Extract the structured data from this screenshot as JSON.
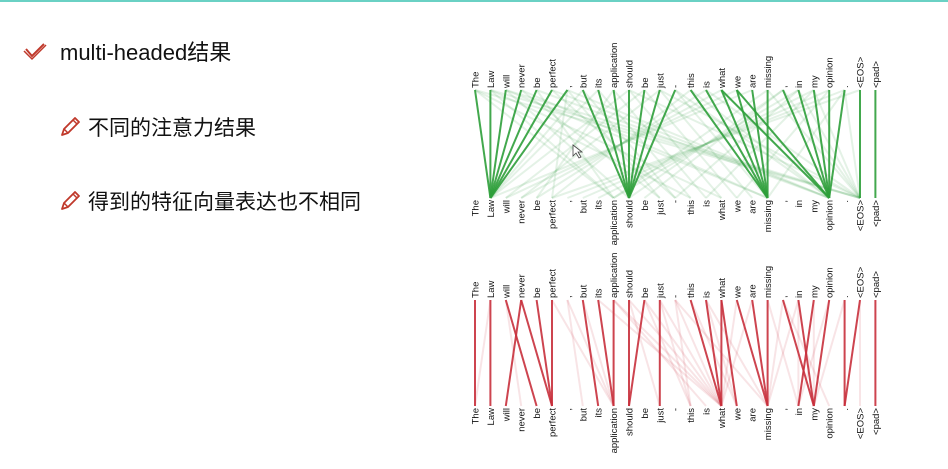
{
  "slide": {
    "heading": "multi-headed结果",
    "points": [
      "不同的注意力结果",
      "得到的特征向量表达也不相同"
    ]
  },
  "tokens": [
    "The",
    "Law",
    "will",
    "never",
    "be",
    "perfect",
    ",",
    "but",
    "its",
    "application",
    "should",
    "be",
    "just",
    "-",
    "this",
    "is",
    "what",
    "we",
    "are",
    "missing",
    ",",
    "in",
    "my",
    "opinion",
    ".",
    "<EOS>",
    "<pad>"
  ],
  "heads": [
    {
      "name": "green-head",
      "color": "#2e9e3a",
      "strong": [
        [
          1,
          1
        ],
        [
          2,
          1
        ],
        [
          3,
          1
        ],
        [
          4,
          1
        ],
        [
          5,
          1
        ],
        [
          8,
          10
        ],
        [
          9,
          10
        ],
        [
          10,
          10
        ],
        [
          11,
          10
        ],
        [
          12,
          10
        ],
        [
          13,
          10
        ],
        [
          14,
          19
        ],
        [
          15,
          19
        ],
        [
          16,
          19
        ],
        [
          17,
          19
        ],
        [
          18,
          19
        ],
        [
          19,
          19
        ],
        [
          20,
          23
        ],
        [
          21,
          23
        ],
        [
          22,
          23
        ],
        [
          23,
          23
        ],
        [
          24,
          23
        ],
        [
          25,
          25
        ],
        [
          26,
          26
        ],
        [
          0,
          1
        ],
        [
          6,
          1
        ],
        [
          7,
          10
        ],
        [
          16,
          23
        ],
        [
          17,
          23
        ]
      ],
      "faint": [
        [
          0,
          9
        ],
        [
          1,
          9
        ],
        [
          2,
          10
        ],
        [
          3,
          12
        ],
        [
          4,
          9
        ],
        [
          5,
          13
        ],
        [
          6,
          12
        ],
        [
          7,
          13
        ],
        [
          8,
          14
        ],
        [
          9,
          15
        ],
        [
          10,
          16
        ],
        [
          11,
          17
        ],
        [
          12,
          18
        ],
        [
          13,
          19
        ],
        [
          2,
          19
        ],
        [
          3,
          19
        ],
        [
          4,
          23
        ],
        [
          5,
          23
        ],
        [
          6,
          23
        ],
        [
          1,
          16
        ],
        [
          0,
          14
        ],
        [
          20,
          10
        ],
        [
          21,
          9
        ],
        [
          22,
          8
        ],
        [
          23,
          7
        ],
        [
          24,
          6
        ],
        [
          25,
          5
        ],
        [
          18,
          1
        ],
        [
          17,
          2
        ],
        [
          16,
          3
        ],
        [
          15,
          4
        ],
        [
          14,
          5
        ],
        [
          19,
          9
        ],
        [
          20,
          11
        ],
        [
          21,
          13
        ],
        [
          22,
          15
        ],
        [
          23,
          17
        ],
        [
          24,
          19
        ],
        [
          12,
          3
        ],
        [
          11,
          2
        ],
        [
          10,
          1
        ],
        [
          9,
          4
        ],
        [
          8,
          1
        ],
        [
          7,
          1
        ],
        [
          6,
          5
        ],
        [
          13,
          23
        ],
        [
          14,
          23
        ],
        [
          15,
          25
        ],
        [
          19,
          25
        ],
        [
          20,
          25
        ],
        [
          21,
          25
        ],
        [
          22,
          25
        ],
        [
          24,
          25
        ],
        [
          0,
          25
        ],
        [
          1,
          25
        ],
        [
          2,
          25
        ],
        [
          12,
          25
        ],
        [
          10,
          25
        ]
      ]
    },
    {
      "name": "red-head",
      "color": "#c8303c",
      "strong": [
        [
          0,
          0
        ],
        [
          1,
          1
        ],
        [
          2,
          4
        ],
        [
          3,
          5
        ],
        [
          4,
          5
        ],
        [
          5,
          5
        ],
        [
          7,
          8
        ],
        [
          8,
          9
        ],
        [
          9,
          9
        ],
        [
          10,
          10
        ],
        [
          11,
          10
        ],
        [
          12,
          12
        ],
        [
          14,
          16
        ],
        [
          15,
          16
        ],
        [
          16,
          16
        ],
        [
          17,
          19
        ],
        [
          18,
          19
        ],
        [
          19,
          19
        ],
        [
          21,
          22
        ],
        [
          22,
          21
        ],
        [
          23,
          22
        ],
        [
          25,
          24
        ],
        [
          26,
          26
        ],
        [
          3,
          2
        ],
        [
          20,
          22
        ],
        [
          16,
          17
        ],
        [
          24,
          24
        ]
      ],
      "faint": [
        [
          10,
          16
        ],
        [
          11,
          16
        ],
        [
          12,
          16
        ],
        [
          13,
          16
        ],
        [
          9,
          16
        ],
        [
          8,
          16
        ],
        [
          6,
          9
        ],
        [
          7,
          9
        ],
        [
          13,
          14
        ],
        [
          14,
          17
        ],
        [
          15,
          17
        ],
        [
          19,
          21
        ],
        [
          20,
          23
        ],
        [
          21,
          21
        ],
        [
          22,
          22
        ],
        [
          23,
          21
        ],
        [
          24,
          22
        ],
        [
          25,
          25
        ],
        [
          10,
          12
        ],
        [
          11,
          14
        ],
        [
          12,
          14
        ],
        [
          13,
          19
        ],
        [
          15,
          19
        ],
        [
          17,
          16
        ],
        [
          18,
          16
        ],
        [
          9,
          15
        ],
        [
          6,
          7
        ],
        [
          5,
          9
        ],
        [
          2,
          3
        ],
        [
          1,
          0
        ],
        [
          20,
          19
        ],
        [
          21,
          19
        ]
      ]
    }
  ]
}
